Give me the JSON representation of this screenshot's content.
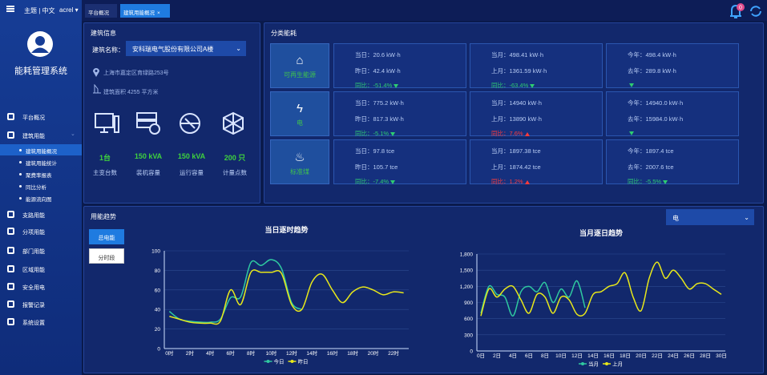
{
  "sidebar": {
    "topbar": {
      "menu_label": "主题 | 中文",
      "user": "acrel"
    },
    "app_title": "能耗管理系统",
    "menu": [
      {
        "label": "平台概况"
      },
      {
        "label": "建筑用能",
        "children": [
          {
            "label": "建筑用能概况",
            "active": true
          },
          {
            "label": "建筑用能统计"
          },
          {
            "label": "聚费率报表"
          },
          {
            "label": "同比分析"
          },
          {
            "label": "能源流向图"
          }
        ]
      },
      {
        "label": "支路用能"
      },
      {
        "label": "分项用能"
      },
      {
        "label": "部门用能"
      },
      {
        "label": "区域用能"
      },
      {
        "label": "安全用电"
      },
      {
        "label": "报警记录"
      },
      {
        "label": "系统设置"
      }
    ]
  },
  "tabs": [
    {
      "label": "平台概况"
    },
    {
      "label": "建筑用能概况",
      "active": true,
      "closable": true
    }
  ],
  "alert_count": 0,
  "building": {
    "title": "建筑信息",
    "name_label": "建筑名称：",
    "name_value": "安科瑞电气股份有限公司A楼",
    "address": "上海市嘉定区育绿路253号",
    "area": "建筑面积 4255 平方米",
    "stats": [
      {
        "value": "1台",
        "label": "主变台数"
      },
      {
        "value": "150 kVA",
        "label": "装机容量"
      },
      {
        "value": "150 kVA",
        "label": "运行容量"
      },
      {
        "value": "200 只",
        "label": "计量点数"
      }
    ]
  },
  "energy": {
    "title": "分类能耗",
    "rows": [
      {
        "label": "可再生能源",
        "cells": [
          {
            "current": "当日：20.6 kW·h",
            "previous": "昨日：42.4 kW·h",
            "change": "同比：-51.4%",
            "trend": "down"
          },
          {
            "current": "当月：498.41 kW·h",
            "previous": "上月：1361.59 kW·h",
            "change": "同比：-63.4%",
            "trend": "down"
          },
          {
            "current": "今年：498.4 kW·h",
            "previous": "去年：289.8 kW·h",
            "trend": "down"
          }
        ]
      },
      {
        "label": "电",
        "cells": [
          {
            "current": "当日：775.2 kW·h",
            "previous": "昨日：817.3 kW·h",
            "change": "同比：-5.1%",
            "trend": "down"
          },
          {
            "current": "当月：14940 kW·h",
            "previous": "上月：13890 kW·h",
            "change": "同比：7.6%",
            "trend": "up"
          },
          {
            "current": "今年：14940.0 kW·h",
            "previous": "去年：15984.0 kW·h",
            "trend": "down"
          }
        ]
      },
      {
        "label": "标准煤",
        "cells": [
          {
            "current": "当日：97.8 tce",
            "previous": "昨日：105.7 tce",
            "change": "同比：-7.4%",
            "trend": "down"
          },
          {
            "current": "当月：1897.38 tce",
            "previous": "上月：1874.42 tce",
            "change": "同比：1.2%",
            "trend": "up"
          },
          {
            "current": "今年：1897.4 tce",
            "previous": "去年：2007.6 tce",
            "change": "同比：-5.5%",
            "trend": "down"
          }
        ]
      }
    ]
  },
  "trend": {
    "title": "用能趋势",
    "selector": "电",
    "buttons": [
      {
        "label": "总电能",
        "active": true
      },
      {
        "label": "分时段"
      }
    ]
  },
  "chart_data": [
    {
      "type": "line",
      "title": "当日逐时趋势",
      "categories": [
        "0时",
        null,
        "2时",
        null,
        "4时",
        null,
        "6时",
        null,
        "8时",
        null,
        "10时",
        null,
        "12时",
        null,
        "14时",
        null,
        "16时",
        null,
        "18时",
        null,
        "20时",
        null,
        "22时",
        null
      ],
      "ylim": [
        0,
        100
      ],
      "yticks": [
        0,
        20,
        40,
        60,
        80,
        100
      ],
      "grid": true,
      "series": [
        {
          "name": "今日",
          "color": "#2fc9a0",
          "values": [
            38,
            30,
            28,
            27,
            27,
            30,
            52,
            53,
            88,
            85,
            91,
            82,
            47,
            40,
            null,
            null,
            null,
            null,
            null,
            null,
            null,
            null,
            null,
            null
          ]
        },
        {
          "name": "昨日",
          "color": "#e8e81a",
          "values": [
            33,
            30,
            27,
            26,
            26,
            28,
            60,
            45,
            78,
            78,
            78,
            77,
            45,
            40,
            68,
            76,
            60,
            47,
            58,
            63,
            60,
            55,
            58,
            57
          ]
        }
      ]
    },
    {
      "type": "line",
      "title": "当月逐日趋势",
      "categories": [
        "0日",
        null,
        "2日",
        null,
        "4日",
        null,
        "6日",
        null,
        "8日",
        null,
        "10日",
        null,
        "12日",
        null,
        "14日",
        null,
        "16日",
        null,
        "18日",
        null,
        "20日",
        null,
        "22日",
        null,
        "24日",
        null,
        "26日",
        null,
        "28日",
        null,
        "30日"
      ],
      "ylim": [
        0,
        1800
      ],
      "yticks": [
        0,
        300,
        600,
        900,
        {
          "value": 1200,
          "label": "1,200"
        },
        {
          "value": 1500,
          "label": "1,500"
        },
        {
          "value": 1800,
          "label": "1,800"
        }
      ],
      "grid": true,
      "series": [
        {
          "name": "当月",
          "color": "#2fc9a0",
          "values": [
            700,
            1200,
            1050,
            1000,
            650,
            1100,
            1200,
            1100,
            1270,
            900,
            1150,
            1000,
            1300,
            800,
            null,
            null,
            null,
            null,
            null,
            null,
            null,
            null,
            null,
            null,
            null,
            null,
            null,
            null,
            null,
            null,
            null
          ]
        },
        {
          "name": "上月",
          "color": "#e8e81a",
          "values": [
            650,
            1150,
            1000,
            1150,
            1200,
            950,
            700,
            1050,
            1000,
            700,
            1000,
            950,
            680,
            700,
            1050,
            1100,
            1200,
            1250,
            1450,
            1000,
            750,
            1350,
            1650,
            1350,
            1500,
            1350,
            1150,
            1250,
            1250,
            1150,
            1050
          ]
        }
      ]
    }
  ]
}
